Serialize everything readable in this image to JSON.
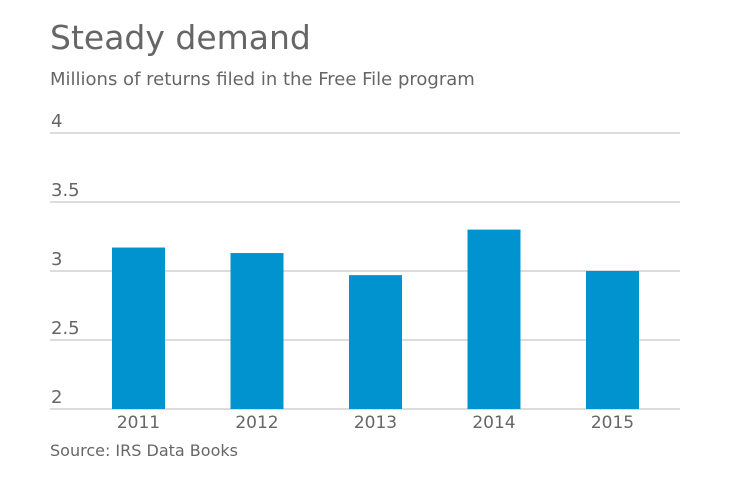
{
  "chart_data": {
    "type": "bar",
    "title": "Steady demand",
    "subtitle": "Millions of returns filed in the Free File program",
    "source": "Source: IRS Data Books",
    "categories": [
      "2011",
      "2012",
      "2013",
      "2014",
      "2015"
    ],
    "values": [
      3.17,
      3.13,
      2.97,
      3.3,
      3.0
    ],
    "ylim": [
      2,
      4
    ],
    "yticks": [
      "2",
      "2.5",
      "3",
      "3.5",
      "4"
    ],
    "grid": true,
    "bar_color": "#0093d0"
  }
}
